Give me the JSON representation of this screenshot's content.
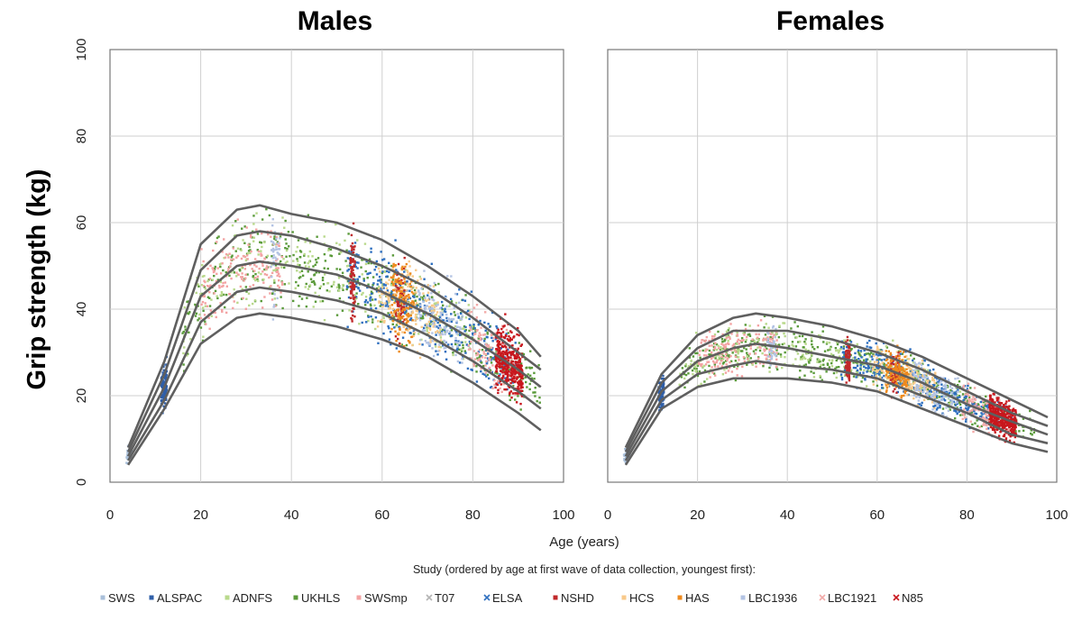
{
  "chart_data": {
    "type": "scatter",
    "ylabel": "Grip strength (kg)",
    "xlabel": "Age (years)",
    "xlim": [
      0,
      100
    ],
    "ylim": [
      0,
      100
    ],
    "xticks": [
      0,
      20,
      40,
      60,
      80,
      100
    ],
    "yticks": [
      0,
      20,
      40,
      60,
      80,
      100
    ],
    "grid": true,
    "legend_title": "Study (ordered by age at first wave of data collection, youngest first):",
    "legend": [
      {
        "name": "SWS",
        "color": "#a9bfd9",
        "marker": "dot"
      },
      {
        "name": "ALSPAC",
        "color": "#2f5fa8",
        "marker": "dot"
      },
      {
        "name": "ADNFS",
        "color": "#b9d98c",
        "marker": "dot"
      },
      {
        "name": "UKHLS",
        "color": "#5a9a3a",
        "marker": "dot"
      },
      {
        "name": "SWSmp",
        "color": "#f3a3a3",
        "marker": "dot"
      },
      {
        "name": "T07",
        "color": "#b4b4b4",
        "marker": "x"
      },
      {
        "name": "ELSA",
        "color": "#2e6fbf",
        "marker": "x"
      },
      {
        "name": "NSHD",
        "color": "#c0282a",
        "marker": "dot"
      },
      {
        "name": "HCS",
        "color": "#f8c98a",
        "marker": "dot"
      },
      {
        "name": "HAS",
        "color": "#ee8a1e",
        "marker": "dot"
      },
      {
        "name": "LBC1936",
        "color": "#b3c3e3",
        "marker": "dot"
      },
      {
        "name": "LBC1921",
        "color": "#f2aaa8",
        "marker": "x"
      },
      {
        "name": "N85",
        "color": "#c8171d",
        "marker": "x"
      }
    ],
    "panels": [
      {
        "title": "Males",
        "centile_curves": [
          {
            "x": [
              4,
              12,
              20,
              28,
              33,
              40,
              50,
              60,
              70,
              80,
              90,
              95
            ],
            "y": [
              8,
              28,
              55,
              63,
              64,
              62,
              60,
              56,
              50,
              43,
              35,
              29
            ]
          },
          {
            "x": [
              4,
              12,
              20,
              28,
              33,
              40,
              50,
              60,
              70,
              80,
              90,
              95
            ],
            "y": [
              7,
              25,
              49,
              57,
              58,
              57,
              54,
              50,
              45,
              38,
              30,
              26
            ]
          },
          {
            "x": [
              4,
              12,
              20,
              28,
              33,
              40,
              50,
              60,
              70,
              80,
              90,
              95
            ],
            "y": [
              6,
              22,
              43,
              50,
              51,
              50,
              48,
              44,
              39,
              33,
              26,
              22
            ]
          },
          {
            "x": [
              4,
              12,
              20,
              28,
              33,
              40,
              50,
              60,
              70,
              80,
              90,
              95
            ],
            "y": [
              5,
              19,
              37,
              44,
              45,
              44,
              42,
              39,
              34,
              28,
              21,
              17
            ]
          },
          {
            "x": [
              4,
              12,
              20,
              28,
              33,
              40,
              50,
              60,
              70,
              80,
              90,
              95
            ],
            "y": [
              4,
              17,
              32,
              38,
              39,
              38,
              36,
              33,
              29,
              23,
              16,
              12
            ]
          }
        ]
      },
      {
        "title": "Females",
        "centile_curves": [
          {
            "x": [
              4,
              12,
              20,
              28,
              33,
              40,
              50,
              60,
              70,
              80,
              90,
              98
            ],
            "y": [
              8,
              25,
              34,
              38,
              39,
              38,
              36,
              33,
              29,
              24,
              19,
              15
            ]
          },
          {
            "x": [
              4,
              12,
              20,
              28,
              33,
              40,
              50,
              60,
              70,
              80,
              90,
              98
            ],
            "y": [
              7,
              23,
              31,
              35,
              35,
              35,
              33,
              30,
              26,
              21,
              16,
              13
            ]
          },
          {
            "x": [
              4,
              12,
              20,
              28,
              33,
              40,
              50,
              60,
              70,
              80,
              90,
              98
            ],
            "y": [
              6,
              21,
              28,
              31,
              32,
              31,
              29,
              27,
              23,
              18,
              14,
              11
            ]
          },
          {
            "x": [
              4,
              12,
              20,
              28,
              33,
              40,
              50,
              60,
              70,
              80,
              90,
              98
            ],
            "y": [
              5,
              19,
              25,
              27,
              28,
              27,
              26,
              24,
              20,
              16,
              11,
              9
            ]
          },
          {
            "x": [
              4,
              12,
              20,
              28,
              33,
              40,
              50,
              60,
              70,
              80,
              90,
              98
            ],
            "y": [
              4,
              17,
              22,
              24,
              24,
              24,
              23,
              21,
              17,
              13,
              9,
              7
            ]
          }
        ]
      }
    ]
  }
}
